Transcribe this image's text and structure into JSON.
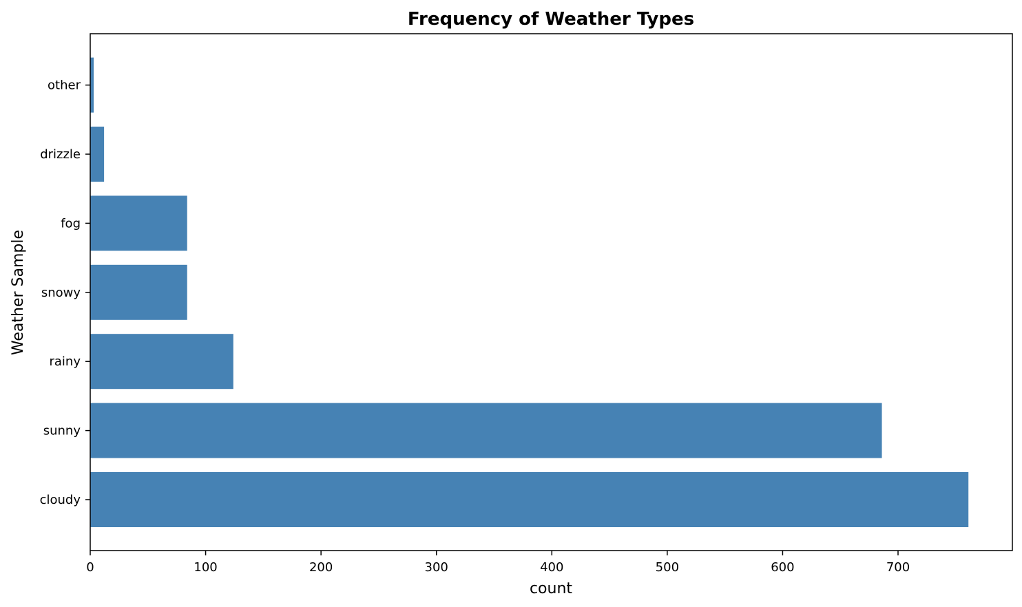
{
  "chart_data": {
    "type": "bar",
    "orientation": "horizontal",
    "title": "Frequency of Weather Types",
    "xlabel": "count",
    "ylabel": "Weather Sample",
    "categories": [
      "cloudy",
      "sunny",
      "rainy",
      "snowy",
      "fog",
      "drizzle",
      "other"
    ],
    "values": [
      761,
      686,
      124,
      84,
      84,
      12,
      3
    ],
    "xticks": [
      0,
      100,
      200,
      300,
      400,
      500,
      600,
      700
    ],
    "xlim": [
      0,
      800
    ],
    "grid": false,
    "bar_color": "#4682b4"
  }
}
